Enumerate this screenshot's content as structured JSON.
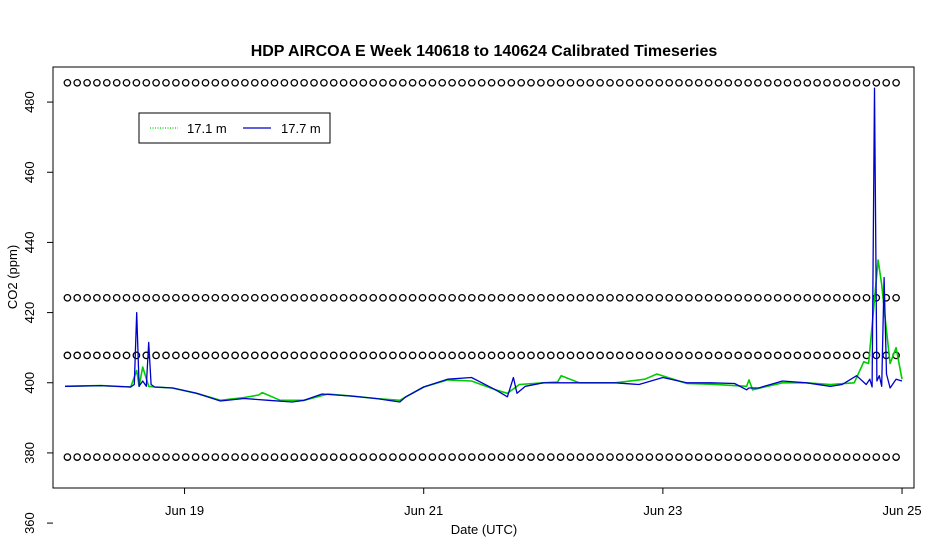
{
  "chart_data": {
    "type": "line",
    "title": "HDP AIRCOA E  Week 140618 to 140624  Calibrated Timeseries",
    "xlabel": "Date (UTC)",
    "ylabel": "CO2 (ppm)",
    "xlim": [
      17.9,
      25.1
    ],
    "ylim": [
      370,
      490
    ],
    "xticks": [
      {
        "value": 19,
        "label": "Jun 19"
      },
      {
        "value": 21,
        "label": "Jun 21"
      },
      {
        "value": 23,
        "label": "Jun 23"
      },
      {
        "value": 25,
        "label": "Jun 25"
      }
    ],
    "yticks": [
      360,
      380,
      400,
      420,
      440,
      460,
      480
    ],
    "grid": false,
    "legend": {
      "position": "top-left",
      "entries": [
        {
          "label": "17.1 m",
          "color": "#00cc00",
          "style": "dotted"
        },
        {
          "label": "17.7 m",
          "color": "#0000cc",
          "style": "solid"
        }
      ]
    },
    "circle_rows": {
      "note_values_ppm": [
        485.5,
        424.2,
        407.8,
        378.8
      ],
      "x_start": 18.02,
      "x_end": 25.0,
      "step": 0.0825
    },
    "series": [
      {
        "name": "17.1 m",
        "color": "#00cc00",
        "x": [
          18.0,
          18.3,
          18.55,
          18.6,
          18.62,
          18.65,
          18.7,
          18.75,
          18.9,
          19.1,
          19.3,
          19.5,
          19.62,
          19.65,
          19.8,
          20.0,
          20.2,
          20.4,
          20.6,
          20.8,
          21.0,
          21.2,
          21.4,
          21.6,
          21.7,
          21.8,
          22.0,
          22.12,
          22.15,
          22.3,
          22.6,
          22.85,
          22.95,
          23.2,
          23.4,
          23.7,
          23.72,
          23.75,
          24.0,
          24.2,
          24.4,
          24.6,
          24.68,
          24.72,
          24.76,
          24.8,
          24.83,
          24.86,
          24.9,
          24.95,
          25.0
        ],
        "values": [
          399.0,
          399.2,
          398.8,
          403.5,
          399.0,
          404.5,
          399.0,
          398.8,
          398.5,
          397.0,
          395.0,
          395.8,
          396.5,
          397.2,
          395.0,
          395.0,
          396.8,
          396.2,
          395.5,
          395.0,
          398.8,
          400.8,
          400.5,
          398.0,
          397.0,
          399.5,
          400.0,
          400.2,
          402.0,
          400.0,
          400.0,
          401.0,
          402.5,
          399.8,
          399.6,
          399.0,
          400.8,
          398.0,
          400.0,
          400.0,
          399.5,
          400.0,
          406.0,
          405.5,
          420.0,
          435.0,
          428.0,
          418.0,
          405.5,
          410.0,
          401.0
        ]
      },
      {
        "name": "17.7 m",
        "color": "#0000cc",
        "x": [
          18.0,
          18.3,
          18.55,
          18.58,
          18.6,
          18.62,
          18.65,
          18.68,
          18.7,
          18.72,
          18.75,
          18.9,
          19.1,
          19.3,
          19.5,
          19.7,
          19.9,
          20.0,
          20.15,
          20.4,
          20.6,
          20.8,
          20.85,
          21.0,
          21.2,
          21.4,
          21.6,
          21.7,
          21.75,
          21.78,
          21.85,
          22.0,
          22.3,
          22.6,
          22.8,
          23.0,
          23.2,
          23.4,
          23.6,
          23.7,
          23.72,
          23.8,
          24.0,
          24.2,
          24.4,
          24.5,
          24.62,
          24.7,
          24.73,
          24.75,
          24.77,
          24.79,
          24.81,
          24.83,
          24.85,
          24.87,
          24.9,
          24.95,
          25.0
        ],
        "values": [
          399.0,
          399.2,
          398.8,
          399.5,
          420.0,
          399.0,
          400.5,
          399.0,
          411.5,
          399.5,
          398.8,
          398.5,
          397.0,
          394.8,
          395.5,
          395.0,
          394.5,
          395.0,
          396.8,
          396.2,
          395.5,
          394.5,
          396.0,
          398.8,
          401.0,
          401.5,
          398.0,
          396.0,
          401.5,
          397.0,
          399.0,
          400.0,
          400.0,
          400.0,
          399.5,
          401.5,
          400.0,
          400.0,
          399.8,
          398.0,
          398.5,
          398.5,
          400.5,
          400.0,
          399.0,
          399.5,
          402.0,
          399.5,
          401.0,
          398.8,
          484.0,
          400.5,
          402.0,
          399.0,
          430.0,
          402.5,
          398.5,
          401.0,
          400.5
        ]
      }
    ]
  }
}
